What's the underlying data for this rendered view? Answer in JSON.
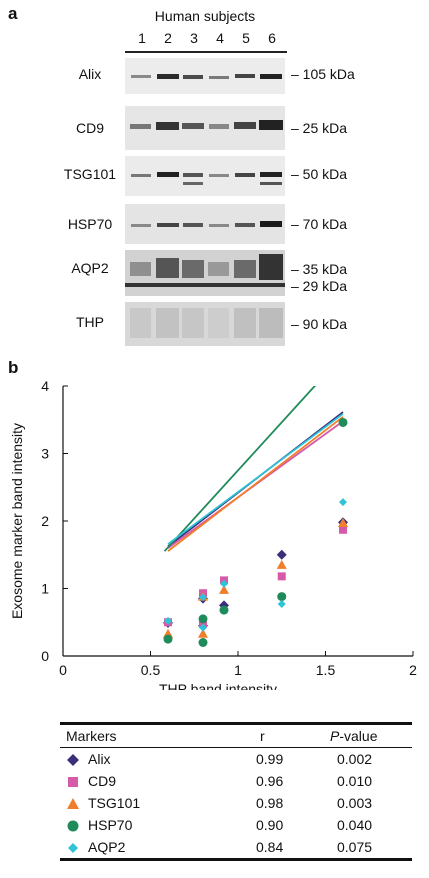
{
  "panel_a": {
    "letter": "a",
    "title": "Human subjects",
    "lanes": [
      "1",
      "2",
      "3",
      "4",
      "5",
      "6"
    ],
    "blots": [
      {
        "label": "Alix",
        "sizes": [
          "– 105 kDa"
        ]
      },
      {
        "label": "CD9",
        "sizes": [
          "– 25 kDa"
        ]
      },
      {
        "label": "TSG101",
        "sizes": [
          "– 50 kDa"
        ]
      },
      {
        "label": "HSP70",
        "sizes": [
          "– 70 kDa"
        ]
      },
      {
        "label": "AQP2",
        "sizes": [
          "– 35 kDa",
          "– 29 kDa"
        ]
      },
      {
        "label": "THP",
        "sizes": [
          "– 90 kDa"
        ]
      }
    ]
  },
  "panel_b": {
    "letter": "b"
  },
  "chart_data": {
    "type": "scatter",
    "xlabel": "THP band intensity",
    "ylabel": "Exosome marker band intensity",
    "xlim": [
      0,
      2
    ],
    "ylim": [
      0,
      4
    ],
    "xticks": [
      "0",
      "0.5",
      "1",
      "1.5",
      "2"
    ],
    "yticks": [
      "0",
      "1",
      "2",
      "3",
      "4"
    ],
    "x": [
      0.6,
      0.8,
      0.8,
      0.92,
      1.25,
      1.6
    ],
    "series": [
      {
        "name": "Alix",
        "color": "#3b2f7a",
        "marker": "diamond",
        "y": [
          0.49,
          0.45,
          0.85,
          0.75,
          1.5,
          1.98
        ],
        "fit": [
          0.43,
          1.99
        ]
      },
      {
        "name": "CD9",
        "color": "#d55ba8",
        "marker": "square",
        "y": [
          0.5,
          0.48,
          0.93,
          1.12,
          1.18,
          1.87
        ],
        "fit": [
          0.47,
          1.88
        ]
      },
      {
        "name": "TSG101",
        "color": "#f07e2a",
        "marker": "triangle",
        "y": [
          0.33,
          0.33,
          0.88,
          0.98,
          1.35,
          1.97
        ],
        "fit": [
          0.36,
          1.99
        ]
      },
      {
        "name": "HSP70",
        "color": "#1f8a5a",
        "marker": "circle",
        "y": [
          0.25,
          0.2,
          0.55,
          0.68,
          0.88,
          3.46
        ],
        "fit": [
          -0.1,
          2.85
        ]
      },
      {
        "name": "AQP2",
        "color": "#2ec4d6",
        "marker": "diamond-small",
        "y": [
          0.52,
          0.42,
          0.87,
          1.07,
          0.77,
          2.28
        ],
        "fit": [
          0.5,
          1.93
        ]
      }
    ]
  },
  "table": {
    "headers": [
      "Markers",
      "r",
      "P-value"
    ],
    "rows": [
      {
        "marker": "Alix",
        "r": "0.99",
        "p": "0.002"
      },
      {
        "marker": "CD9",
        "r": "0.96",
        "p": "0.010"
      },
      {
        "marker": "TSG101",
        "r": "0.98",
        "p": "0.003"
      },
      {
        "marker": "HSP70",
        "r": "0.90",
        "p": "0.040"
      },
      {
        "marker": "AQP2",
        "r": "0.84",
        "p": "0.075"
      }
    ]
  }
}
